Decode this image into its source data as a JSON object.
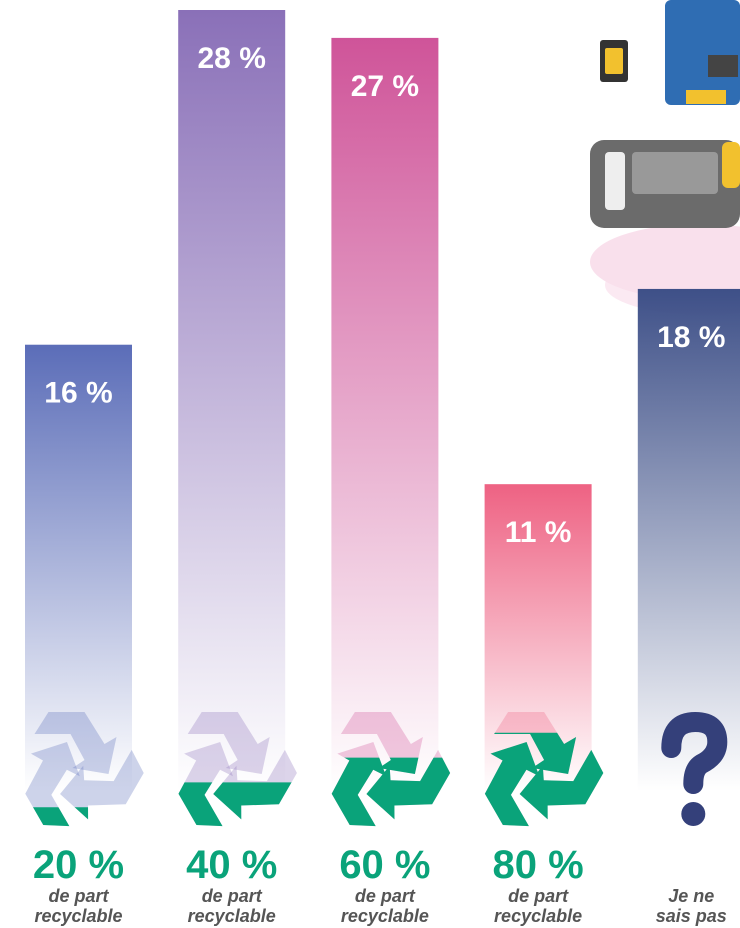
{
  "chart_data": {
    "type": "bar",
    "categories": [
      "20 %",
      "40 %",
      "60 %",
      "80 %",
      null
    ],
    "category_sublabels": [
      "de part recyclable",
      "de part recyclable",
      "de part recyclable",
      "de part recyclable",
      "Je ne sais pas"
    ],
    "values": [
      16,
      28,
      27,
      11,
      18
    ],
    "value_labels": [
      "16 %",
      "28 %",
      "27 %",
      "11 %",
      "18 %"
    ],
    "colors": [
      "#5b6db8",
      "#8a70b8",
      "#cf5499",
      "#ee6283",
      "#3e5088"
    ]
  }
}
